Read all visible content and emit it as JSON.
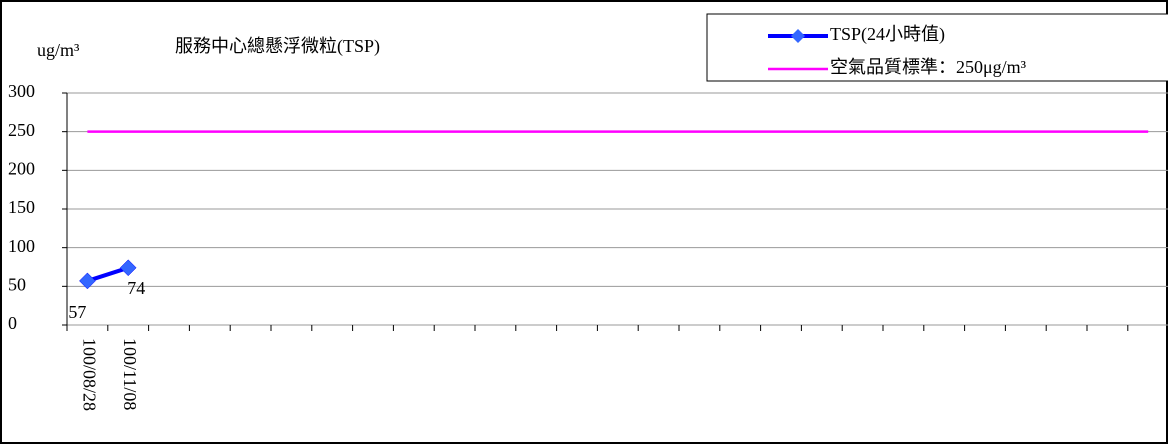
{
  "chart_data": {
    "type": "line",
    "title": "服務中心總懸浮微粒(TSP)",
    "y_label": "ug/m³",
    "categories": [
      "100/08/28",
      "100/11/08",
      null,
      null,
      null,
      null,
      null,
      null,
      null,
      null,
      null,
      null,
      null,
      null,
      null,
      null,
      null,
      null,
      null,
      null,
      null,
      null,
      null,
      null,
      null,
      null,
      null
    ],
    "series": [
      {
        "name": "TSP(24小時值)",
        "color": "#0000ff",
        "marker_color": "#3366ff",
        "values": [
          57,
          74,
          null,
          null,
          null,
          null,
          null,
          null,
          null,
          null,
          null,
          null,
          null,
          null,
          null,
          null,
          null,
          null,
          null,
          null,
          null,
          null,
          null,
          null,
          null,
          null,
          null
        ]
      },
      {
        "name": "空氣品質標準：250μg/m³",
        "color": "#ff00ff",
        "values": [
          250,
          250,
          250,
          250,
          250,
          250,
          250,
          250,
          250,
          250,
          250,
          250,
          250,
          250,
          250,
          250,
          250,
          250,
          250,
          250,
          250,
          250,
          250,
          250,
          250,
          250,
          250
        ]
      }
    ],
    "ylim": [
      0,
      300
    ],
    "yticks": [
      0,
      50,
      100,
      150,
      200,
      250,
      300
    ],
    "grid": true
  }
}
